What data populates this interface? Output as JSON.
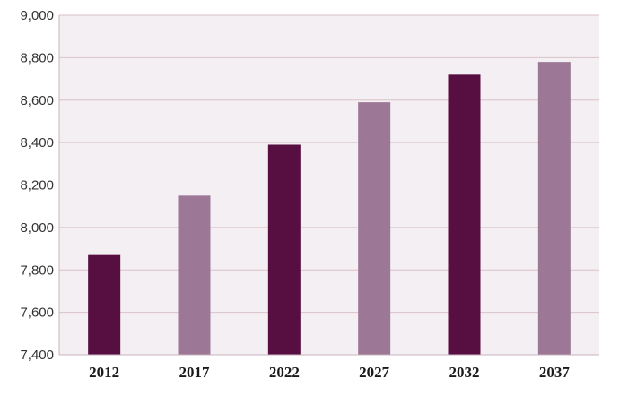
{
  "chart_data": {
    "type": "bar",
    "title": "",
    "xlabel": "",
    "ylabel": "",
    "categories": [
      "2012",
      "2017",
      "2022",
      "2027",
      "2032",
      "2037"
    ],
    "values": [
      7870,
      8150,
      8390,
      8590,
      8720,
      8780
    ],
    "ylim": [
      7400,
      9000
    ],
    "yticks": [
      7400,
      7600,
      7800,
      8000,
      8200,
      8400,
      8600,
      8800,
      9000
    ],
    "ytick_labels": [
      "7,400",
      "7,600",
      "7,800",
      "8,000",
      "8,200",
      "8,400",
      "8,600",
      "8,800",
      "9,000"
    ],
    "grid": true,
    "legend": "none",
    "colors": {
      "bar_dark": "#570e40",
      "bar_light": "#9d7896",
      "plot_background": "#f4eff2",
      "gridline": "#d9c2c9"
    },
    "bar_color_pattern": [
      "bar_dark",
      "bar_light",
      "bar_dark",
      "bar_light",
      "bar_dark",
      "bar_light"
    ]
  }
}
